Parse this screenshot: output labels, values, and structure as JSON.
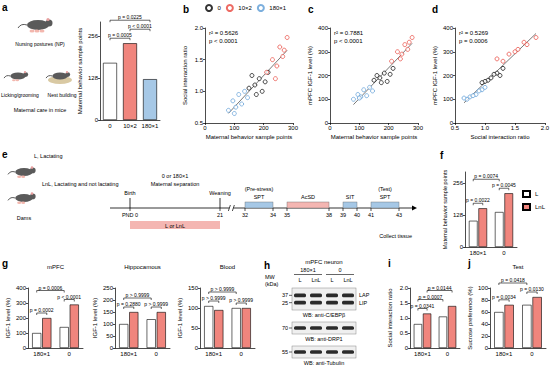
{
  "chart_data": [
    {
      "panel": "a",
      "type": "bar",
      "categories": [
        "0",
        "10×2",
        "180×1"
      ],
      "values": [
        175,
        235,
        125
      ],
      "colors": [
        "#ffffff",
        "#f0857d",
        "#a6c8e6"
      ],
      "ylabel": "Maternal behavior sample points",
      "ylim": [
        0,
        300
      ],
      "yticks": [
        0,
        128,
        256
      ],
      "annotations": [
        {
          "text": "p = 0.0005",
          "between": [
            0,
            1
          ]
        },
        {
          "text": "p < 0.0001",
          "between": [
            1,
            2
          ]
        },
        {
          "text": "p = 0.0225",
          "between": [
            0,
            2
          ]
        }
      ]
    },
    {
      "panel": "b",
      "type": "scatter",
      "xlabel": "Maternal behavior sample points",
      "ylabel": "Social interaction ratio",
      "xlim": [
        0,
        300
      ],
      "xticks": [
        0,
        100,
        200,
        300
      ],
      "ylim": [
        0.5,
        2
      ],
      "yticks": [
        0.5,
        {
          "value": 1,
          "label": "1.0"
        },
        1.5,
        {
          "value": 2,
          "label": "2.0"
        }
      ],
      "legend": "top",
      "annotations": [
        "r² = 0.5626",
        "p < 0.0001"
      ],
      "series": [
        {
          "name": "0",
          "color": "#000000",
          "marker": "circle-open",
          "values": [
            [
              150,
              1.05
            ],
            [
              170,
              1.1
            ],
            [
              185,
              1.2
            ],
            [
              195,
              1.0
            ],
            [
              205,
              1.15
            ],
            [
              215,
              1.3
            ],
            [
              175,
              0.95
            ],
            [
              160,
              1.25
            ]
          ]
        },
        {
          "name": "10×2",
          "color": "#e8453c",
          "marker": "circle-open",
          "values": [
            [
              210,
              1.3
            ],
            [
              230,
              1.5
            ],
            [
              245,
              1.4
            ],
            [
              255,
              1.7
            ],
            [
              265,
              1.55
            ],
            [
              280,
              1.85
            ],
            [
              240,
              1.2
            ],
            [
              270,
              1.65
            ]
          ]
        },
        {
          "name": "180×1",
          "color": "#5b9bd5",
          "marker": "circle-open",
          "values": [
            [
              80,
              0.7
            ],
            [
              95,
              0.85
            ],
            [
              105,
              0.75
            ],
            [
              115,
              0.95
            ],
            [
              125,
              0.8
            ],
            [
              135,
              1.0
            ],
            [
              145,
              0.9
            ],
            [
              100,
              0.65
            ]
          ]
        }
      ]
    },
    {
      "panel": "c",
      "type": "scatter",
      "xlabel": "Maternal behavior sample points",
      "ylabel": "mPFC IGF-1 level (%)",
      "xlim": [
        0,
        300
      ],
      "xticks": [
        0,
        100,
        200,
        300
      ],
      "ylim": [
        0,
        400
      ],
      "yticks": [
        0,
        100,
        200,
        300,
        400
      ],
      "annotations": [
        "r² = 0.7881",
        "p < 0.0001"
      ],
      "series": [
        {
          "name": "0",
          "color": "#000000",
          "marker": "circle-open",
          "values": [
            [
              150,
              180
            ],
            [
              170,
              190
            ],
            [
              185,
              210
            ],
            [
              195,
              175
            ],
            [
              205,
              205
            ],
            [
              215,
              230
            ],
            [
              175,
              170
            ],
            [
              160,
              200
            ]
          ]
        },
        {
          "name": "10×2",
          "color": "#e8453c",
          "marker": "circle-open",
          "values": [
            [
              210,
              260
            ],
            [
              230,
              300
            ],
            [
              245,
              290
            ],
            [
              255,
              330
            ],
            [
              265,
              310
            ],
            [
              280,
              360
            ],
            [
              240,
              270
            ],
            [
              270,
              340
            ]
          ]
        },
        {
          "name": "180×1",
          "color": "#5b9bd5",
          "marker": "circle-open",
          "values": [
            [
              80,
              100
            ],
            [
              95,
              120
            ],
            [
              105,
              110
            ],
            [
              115,
              140
            ],
            [
              125,
              115
            ],
            [
              135,
              150
            ],
            [
              145,
              135
            ],
            [
              100,
              105
            ]
          ]
        }
      ]
    },
    {
      "panel": "d",
      "type": "scatter",
      "xlabel": "Social interaction ratio",
      "ylabel": "mPFC IGF-1 level (%)",
      "xlim": [
        0.5,
        2
      ],
      "xticks": [
        0.5,
        {
          "value": 1,
          "label": "1.0"
        },
        1.5,
        {
          "value": 2,
          "label": "2.0"
        }
      ],
      "ylim": [
        0,
        400
      ],
      "yticks": [
        0,
        100,
        200,
        300,
        400
      ],
      "annotations": [
        "r² = 0.5269",
        "p = 0.0006"
      ],
      "series": [
        {
          "name": "0",
          "color": "#000000",
          "marker": "circle-open",
          "values": [
            [
              1.05,
              180
            ],
            [
              1.1,
              190
            ],
            [
              1.2,
              210
            ],
            [
              1.0,
              175
            ],
            [
              1.15,
              205
            ],
            [
              1.3,
              230
            ],
            [
              0.95,
              170
            ],
            [
              1.25,
              200
            ]
          ]
        },
        {
          "name": "10×2",
          "color": "#e8453c",
          "marker": "circle-open",
          "values": [
            [
              1.3,
              260
            ],
            [
              1.5,
              300
            ],
            [
              1.4,
              290
            ],
            [
              1.7,
              330
            ],
            [
              1.55,
              310
            ],
            [
              1.85,
              360
            ],
            [
              1.2,
              270
            ],
            [
              1.65,
              340
            ]
          ]
        },
        {
          "name": "180×1",
          "color": "#5b9bd5",
          "marker": "circle-open",
          "values": [
            [
              0.7,
              100
            ],
            [
              0.85,
              120
            ],
            [
              0.75,
              110
            ],
            [
              0.95,
              140
            ],
            [
              0.8,
              115
            ],
            [
              1.0,
              150
            ],
            [
              0.9,
              135
            ],
            [
              0.65,
              105
            ]
          ]
        }
      ]
    },
    {
      "panel": "f",
      "type": "bar",
      "categories": [
        "180×1",
        "0"
      ],
      "series": [
        {
          "name": "L",
          "color": "#ffffff",
          "values": [
            105,
            140
          ]
        },
        {
          "name": "LnL",
          "color": "#f0857d",
          "values": [
            155,
            215
          ]
        }
      ],
      "ylabel": "Maternal behavior sample points",
      "ylim": [
        0,
        300
      ],
      "yticks": [
        0,
        128,
        256
      ],
      "legend": "right",
      "annotations": [
        {
          "text": "p = 0.0022",
          "between": [
            0,
            1
          ]
        },
        {
          "text": "p = 0.0045",
          "between": [
            2,
            3
          ]
        },
        {
          "text": "p = 0.0074",
          "between": [
            0,
            2
          ]
        }
      ]
    },
    {
      "panel": "g",
      "title": "mPFC",
      "type": "bar",
      "categories": [
        "180×1",
        "0"
      ],
      "series": [
        {
          "name": "L",
          "color": "#ffffff",
          "values": [
            100,
            140
          ]
        },
        {
          "name": "LnL",
          "color": "#f0857d",
          "values": [
            200,
            290
          ]
        }
      ],
      "ylabel": "IGF-1 level (%)",
      "ylim": [
        0,
        400
      ],
      "yticks": [
        0,
        100,
        200,
        300,
        400
      ],
      "annotations": [
        {
          "text": "p = 0.0002",
          "between": [
            0,
            1
          ]
        },
        {
          "text": "p < 0.0001",
          "between": [
            2,
            3
          ]
        },
        {
          "text": "p = 0.0006",
          "between": [
            0,
            2
          ]
        }
      ]
    },
    {
      "title": "Hippocamous",
      "type": "bar",
      "categories": [
        "180×1",
        "0"
      ],
      "series": [
        {
          "name": "L",
          "color": "#ffffff",
          "values": [
            100,
            120
          ]
        },
        {
          "name": "LnL",
          "color": "#f0857d",
          "values": [
            150,
            150
          ]
        }
      ],
      "ylabel": "IGF-1 level (%)",
      "ylim": [
        0,
        250
      ],
      "yticks": [
        0,
        50,
        100,
        150,
        200,
        250
      ],
      "annotations": [
        {
          "text": "p = 0.2880",
          "between": [
            0,
            1
          ]
        },
        {
          "text": "p > 0.9999",
          "between": [
            2,
            3
          ]
        },
        {
          "text": "p > 0.9999",
          "between": [
            0,
            2
          ]
        }
      ]
    },
    {
      "title": "Blood",
      "type": "bar",
      "categories": [
        "180×1",
        "0"
      ],
      "series": [
        {
          "name": "L",
          "color": "#ffffff",
          "values": [
            105,
            100
          ]
        },
        {
          "name": "LnL",
          "color": "#f0857d",
          "values": [
            95,
            100
          ]
        }
      ],
      "ylabel": "IGF-1 level (%)",
      "ylim": [
        0,
        150
      ],
      "yticks": [
        0,
        50,
        100,
        150
      ],
      "annotations": [
        {
          "text": "p > 0.9999",
          "between": [
            0,
            1
          ]
        },
        {
          "text": "p > 0.9999",
          "between": [
            2,
            3
          ]
        },
        {
          "text": "p > 0.9999",
          "between": [
            0,
            2
          ]
        }
      ]
    },
    {
      "panel": "i",
      "type": "bar",
      "categories": [
        "180×1",
        "0"
      ],
      "series": [
        {
          "name": "L",
          "color": "#ffffff",
          "values": [
            0.8,
            1.05
          ]
        },
        {
          "name": "LnL",
          "color": "#f0857d",
          "values": [
            1.15,
            1.4
          ]
        }
      ],
      "ylabel": "Social interaction ratio",
      "ylim": [
        0,
        2
      ],
      "yticks": [
        0,
        0.5,
        {
          "value": 1,
          "label": "1.0"
        },
        1.5,
        {
          "value": 2,
          "label": "2.0"
        }
      ],
      "annotations": [
        {
          "text": "p = 0.0341",
          "between": [
            0,
            1
          ]
        },
        {
          "text": "p = 0.0007",
          "between": [
            0,
            2
          ]
        },
        {
          "text": "p = 0.0144",
          "between": [
            1,
            3
          ]
        }
      ]
    },
    {
      "panel": "j",
      "title": "Test",
      "type": "bar",
      "categories": [
        "180×1",
        "0"
      ],
      "series": [
        {
          "name": "L",
          "color": "#ffffff",
          "values": [
            60,
            72
          ]
        },
        {
          "name": "LnL",
          "color": "#f0857d",
          "values": [
            72,
            85
          ]
        }
      ],
      "ylabel": "Sucrose preference (%)",
      "ylim": [
        0,
        100
      ],
      "yticks": [
        0,
        20,
        40,
        60,
        80,
        100
      ],
      "annotations": [
        {
          "text": "p = 0.0034",
          "between": [
            0,
            1
          ]
        },
        {
          "text": "p = 0.0130",
          "between": [
            2,
            3
          ]
        },
        {
          "text": "p = 0.0418",
          "between": [
            0,
            2
          ]
        }
      ]
    }
  ],
  "diagrams": {
    "a": {
      "labels": [
        "Nursing postures (NP)",
        "Licking/grooming",
        "Nest building"
      ],
      "caption": "Maternal care in mice"
    },
    "e": {
      "panel": "e",
      "dams": [
        {
          "label": "L, Lactating"
        },
        {
          "label": "LnL, Lactating and not lactating"
        }
      ],
      "dams_label": "Dams",
      "start_label": "PND 0",
      "days": [
        21,
        32,
        34,
        35,
        38,
        39,
        40,
        41,
        43
      ],
      "markers": [
        {
          "text": "Birth",
          "at": 0
        },
        {
          "text": "Weaning",
          "at": 21
        }
      ],
      "treatment": {
        "text": "0 or 180×1",
        "subtext": "Maternal separation",
        "from": 0,
        "to": 21
      },
      "housing": {
        "text": "L or LnL",
        "from": 0,
        "to": 21,
        "color": "#f4b6b2"
      },
      "tests": [
        {
          "text": "SPT",
          "note": "(Pre-stress)",
          "from": 32,
          "to": 34,
          "color": "#a6c8e6"
        },
        {
          "text": "AcSD",
          "from": 35,
          "to": 38,
          "color": "#f4b6b2"
        },
        {
          "text": "SIT",
          "from": 39,
          "to": 40,
          "color": "#a6c8e6"
        },
        {
          "text": "SPT",
          "note": "(Test)",
          "from": 41,
          "to": 43,
          "color": "#a6c8e6"
        }
      ],
      "end_label": "Collect tissue"
    },
    "h": {
      "panel": "h",
      "title": "mPFC neuron",
      "groups": [
        {
          "label": "180×1",
          "lanes": [
            "L",
            "LnL"
          ]
        },
        {
          "label": "0",
          "lanes": [
            "L",
            "LnL"
          ]
        }
      ],
      "mw_label": [
        "MW",
        "(kDa)"
      ],
      "blots": [
        {
          "markers": [
            37,
            25
          ],
          "bands": [
            "LAP",
            "LIP"
          ],
          "antibody": "WB: anti-C/EBPβ"
        },
        {
          "markers": [
            70
          ],
          "antibody": "WB: anti-DRP1"
        },
        {
          "markers": [
            55
          ],
          "antibody": "WB: anti-Tubulin"
        }
      ]
    }
  }
}
